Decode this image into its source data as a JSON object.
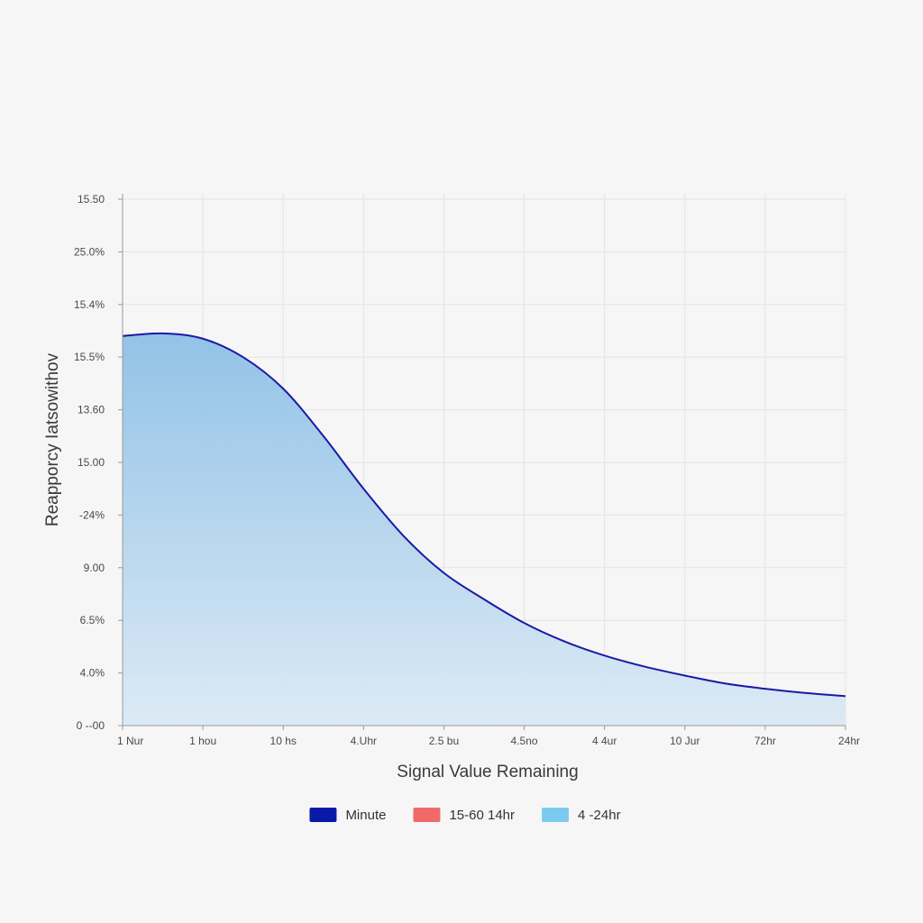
{
  "chart_data": {
    "type": "area",
    "title": "",
    "xlabel": "Signal Value Remaining",
    "ylabel": "Reapporcy Iatsowithov",
    "x_tick_labels": [
      "1 Nur",
      "1 hou",
      "10 hs",
      "4.Uhr",
      "2.5 bu",
      "4.5no",
      "4 4ur",
      "10 Jur",
      "72hr",
      "24hr"
    ],
    "y_tick_labels": [
      "0 --00",
      "4.0%",
      "6.5%",
      "9.00",
      "-24%",
      "15.00",
      "13.60",
      "15.5%",
      "15.4%",
      "25.0%",
      "15.50"
    ],
    "ylim": [
      0,
      10
    ],
    "grid": true,
    "legend_position": "bottom-center",
    "x": [
      0,
      0.5,
      1,
      1.5,
      2,
      2.5,
      3,
      3.5,
      4,
      4.5,
      5,
      5.5,
      6,
      6.5,
      7,
      7.5,
      8,
      8.5,
      9
    ],
    "series": [
      {
        "values": [
          7.4,
          7.45,
          7.35,
          7.0,
          6.4,
          5.5,
          4.5,
          3.6,
          2.9,
          2.4,
          1.95,
          1.6,
          1.33,
          1.12,
          0.95,
          0.8,
          0.7,
          0.62,
          0.56
        ],
        "color": "#1a1aa6",
        "fill_color": "#8dc0e6"
      }
    ],
    "legend": [
      {
        "label": "Minute",
        "color": "#0a1aa8"
      },
      {
        "label": "15-60 14hr",
        "color": "#f06a6a"
      },
      {
        "label": "4 -24hr",
        "color": "#7ccaf0"
      }
    ]
  }
}
